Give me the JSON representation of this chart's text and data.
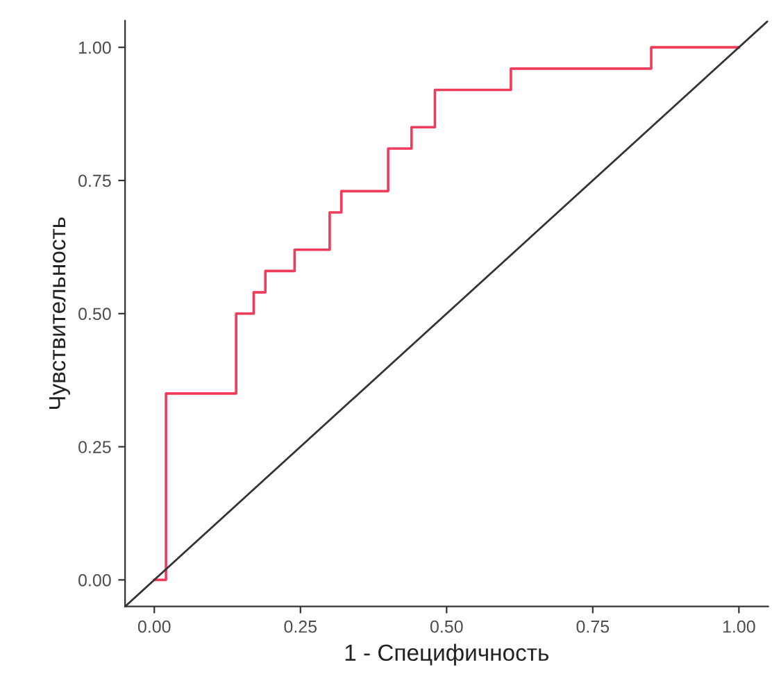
{
  "chart_data": {
    "type": "step",
    "xlabel": "1 - Специфичность",
    "ylabel": "Чувствительность",
    "series": [
      {
        "color": "#f03c5a",
        "x": [
          0,
          0.02,
          0.14,
          0.17,
          0.19,
          0.24,
          0.3,
          0.32,
          0.4,
          0.44,
          0.48,
          0.61,
          0.85,
          1.0
        ],
        "values": [
          0,
          0.35,
          0.5,
          0.54,
          0.58,
          0.62,
          0.69,
          0.73,
          0.81,
          0.85,
          0.92,
          0.96,
          1.0,
          1.0
        ]
      },
      {
        "type": "line",
        "color": "#333333",
        "x": [
          -0.05,
          1.05
        ],
        "values": [
          -0.05,
          1.05
        ]
      }
    ],
    "xlim": [
      -0.05,
      1.05
    ],
    "ylim": [
      -0.05,
      1.05
    ],
    "xticks": [
      {
        "value": 0,
        "label": "0.00"
      },
      {
        "value": 0.25,
        "label": "0.25"
      },
      {
        "value": 0.5,
        "label": "0.50"
      },
      {
        "value": 0.75,
        "label": "0.75"
      },
      {
        "value": 1,
        "label": "1.00"
      }
    ],
    "yticks": [
      {
        "value": 0,
        "label": "0.00"
      },
      {
        "value": 0.25,
        "label": "0.25"
      },
      {
        "value": 0.5,
        "label": "0.50"
      },
      {
        "value": 0.75,
        "label": "0.75"
      },
      {
        "value": 1,
        "label": "1.00"
      }
    ],
    "grid": false
  }
}
